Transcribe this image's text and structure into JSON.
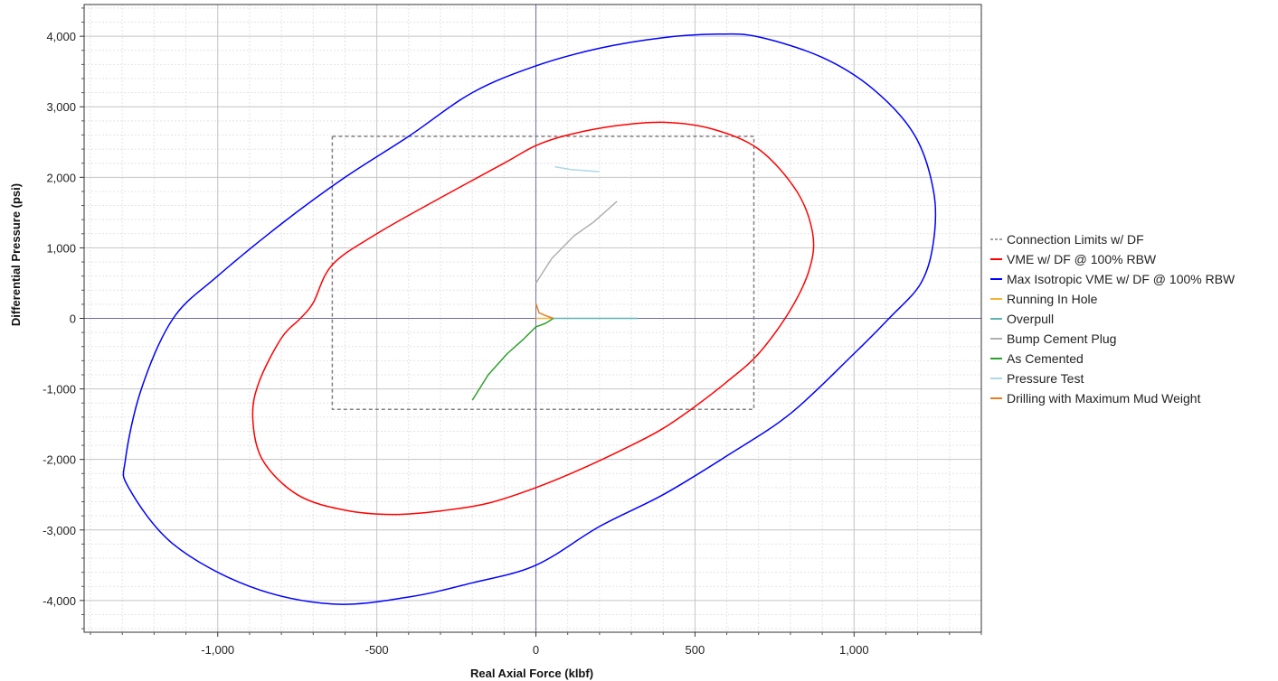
{
  "chart_data": {
    "type": "line",
    "title": "",
    "xlabel": "Real Axial Force (klbf)",
    "ylabel": "Differential Pressure (psi)",
    "xlim": [
      -1420,
      1400
    ],
    "ylim": [
      -4450,
      4450
    ],
    "x_ticks": [
      -1000,
      -500,
      0,
      500,
      1000
    ],
    "x_tick_labels": [
      "-1,000",
      "-500",
      "0",
      "500",
      "1,000"
    ],
    "y_ticks": [
      -4000,
      -3000,
      -2000,
      -1000,
      0,
      1000,
      2000,
      3000,
      4000
    ],
    "y_tick_labels": [
      "-4,000",
      "-3,000",
      "-2,000",
      "-1,000",
      "0",
      "1,000",
      "2,000",
      "3,000",
      "4,000"
    ],
    "grid": true,
    "legend_position": "right",
    "series": [
      {
        "name": "Connection Limits w/ DF",
        "color": "#808080",
        "dashed": true,
        "x": [
          -640,
          685,
          685,
          -640,
          -640
        ],
        "y": [
          2580,
          2580,
          -1290,
          -1290,
          2580
        ]
      },
      {
        "name": "VME w/ DF @ 100% RBW",
        "color": "#ff0000",
        "dashed": false,
        "x": [
          -640,
          -500,
          -300,
          -100,
          0,
          100,
          250,
          400,
          550,
          700,
          820,
          870,
          860,
          800,
          700,
          600,
          500,
          400,
          300,
          150,
          0,
          -150,
          -300,
          -450,
          -600,
          -750,
          -860,
          -890,
          -870,
          -800,
          -740,
          -700,
          -640
        ],
        "y": [
          760,
          1200,
          1710,
          2200,
          2450,
          2600,
          2730,
          2780,
          2690,
          2400,
          1800,
          1200,
          700,
          120,
          -500,
          -900,
          -1250,
          -1560,
          -1800,
          -2120,
          -2400,
          -2620,
          -2730,
          -2780,
          -2720,
          -2500,
          -2000,
          -1400,
          -900,
          -280,
          0,
          220,
          760
        ]
      },
      {
        "name": "Max Isotropic VME w/ DF @ 100% RBW",
        "color": "#0000ff",
        "dashed": false,
        "x": [
          -1140,
          -1000,
          -800,
          -600,
          -400,
          -200,
          0,
          200,
          400,
          570,
          700,
          900,
          1060,
          1190,
          1250,
          1250,
          1210,
          1110,
          1000,
          800,
          600,
          400,
          200,
          0,
          -200,
          -400,
          -640,
          -900,
          -1140,
          -1280,
          -1290,
          -1240,
          -1140
        ],
        "y": [
          0,
          600,
          1340,
          2000,
          2580,
          3200,
          3580,
          3830,
          3980,
          4030,
          3990,
          3700,
          3250,
          2600,
          1800,
          1100,
          500,
          0,
          -500,
          -1350,
          -1950,
          -2500,
          -2950,
          -3500,
          -3750,
          -3950,
          -4050,
          -3800,
          -3200,
          -2400,
          -2000,
          -1000,
          0
        ]
      },
      {
        "name": "Running In Hole",
        "color": "#f5b335",
        "dashed": false,
        "x": [
          0,
          40,
          55
        ],
        "y": [
          0,
          0,
          0
        ]
      },
      {
        "name": "Overpull",
        "color": "#5fb4b4",
        "dashed": false,
        "x": [
          55,
          200,
          320
        ],
        "y": [
          0,
          0,
          0
        ]
      },
      {
        "name": "Bump Cement Plug",
        "color": "#b0b0b0",
        "dashed": false,
        "x": [
          0,
          50,
          120,
          180,
          255
        ],
        "y": [
          500,
          850,
          1170,
          1360,
          1660
        ]
      },
      {
        "name": "As Cemented",
        "color": "#2ca02c",
        "dashed": false,
        "x": [
          -200,
          -150,
          -90,
          -40,
          0,
          30,
          55
        ],
        "y": [
          -1160,
          -800,
          -500,
          -300,
          -120,
          -70,
          0
        ]
      },
      {
        "name": "Pressure Test",
        "color": "#add8e6",
        "dashed": false,
        "x": [
          60,
          110,
          200
        ],
        "y": [
          2150,
          2110,
          2080
        ]
      },
      {
        "name": "Drilling with Maximum Mud Weight",
        "color": "#e67e22",
        "dashed": false,
        "x": [
          0,
          10,
          30,
          55
        ],
        "y": [
          210,
          80,
          40,
          0
        ]
      }
    ]
  }
}
